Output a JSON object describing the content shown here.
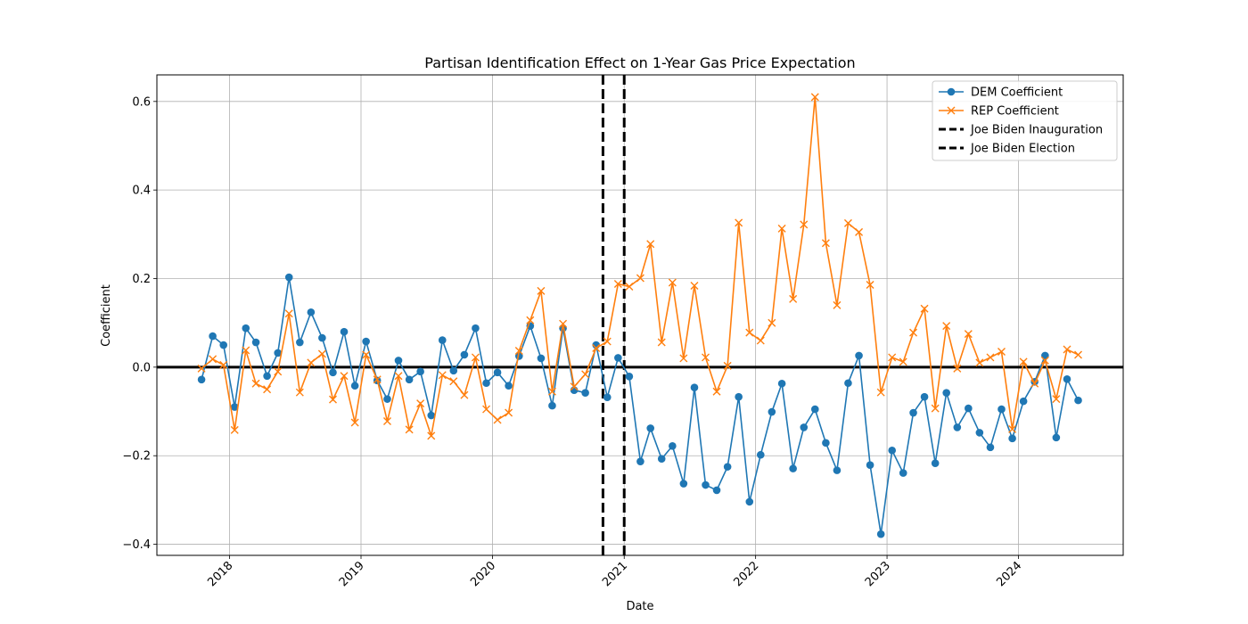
{
  "chart_data": {
    "type": "line",
    "title": "Partisan Identification Effect on 1-Year Gas Price Expectation",
    "xlabel": "Date",
    "ylabel": "Coefficient",
    "xlim": [
      "2017-06-13",
      "2024-10-18"
    ],
    "ylim": [
      -0.425,
      0.66
    ],
    "x_ticks": [
      "2018",
      "2019",
      "2020",
      "2021",
      "2022",
      "2023",
      "2024"
    ],
    "y_ticks": [
      "−0.4",
      "−0.2",
      "0.0",
      "0.2",
      "0.4",
      "0.6"
    ],
    "y_tick_values": [
      -0.4,
      -0.2,
      0.0,
      0.2,
      0.4,
      0.6
    ],
    "grid": true,
    "legend_position": "top-right",
    "dates": [
      "2017-10",
      "2017-11",
      "2017-12",
      "2018-01",
      "2018-02",
      "2018-03",
      "2018-04",
      "2018-05",
      "2018-06",
      "2018-07",
      "2018-08",
      "2018-09",
      "2018-10",
      "2018-11",
      "2018-12",
      "2019-01",
      "2019-02",
      "2019-03",
      "2019-04",
      "2019-05",
      "2019-06",
      "2019-07",
      "2019-08",
      "2019-09",
      "2019-10",
      "2019-11",
      "2019-12",
      "2020-01",
      "2020-02",
      "2020-03",
      "2020-04",
      "2020-05",
      "2020-06",
      "2020-07",
      "2020-08",
      "2020-09",
      "2020-10",
      "2020-11",
      "2020-12",
      "2021-01",
      "2021-02",
      "2021-03",
      "2021-04",
      "2021-05",
      "2021-06",
      "2021-07",
      "2021-08",
      "2021-09",
      "2021-10",
      "2021-11",
      "2021-12",
      "2022-01",
      "2022-02",
      "2022-03",
      "2022-04",
      "2022-05",
      "2022-06",
      "2022-07",
      "2022-08",
      "2022-09",
      "2022-10",
      "2022-11",
      "2022-12",
      "2023-01",
      "2023-02",
      "2023-03",
      "2023-04",
      "2023-05",
      "2023-06",
      "2023-07",
      "2023-08",
      "2023-09",
      "2023-10",
      "2023-11",
      "2023-12",
      "2024-01",
      "2024-02",
      "2024-03",
      "2024-04",
      "2024-05",
      "2024-06"
    ],
    "series": [
      {
        "name": "DEM Coefficient",
        "color": "#1f77b4",
        "marker": "circle",
        "values": [
          -0.028,
          0.07,
          0.05,
          -0.09,
          0.088,
          0.056,
          -0.02,
          0.032,
          0.203,
          0.056,
          0.124,
          0.066,
          -0.012,
          0.08,
          -0.042,
          0.058,
          -0.03,
          -0.072,
          0.015,
          -0.028,
          -0.01,
          -0.109,
          0.061,
          -0.008,
          0.028,
          0.088,
          -0.036,
          -0.012,
          -0.042,
          0.025,
          0.093,
          0.02,
          -0.087,
          0.088,
          -0.052,
          -0.058,
          0.05,
          -0.068,
          0.021,
          -0.021,
          -0.213,
          -0.138,
          -0.207,
          -0.178,
          -0.263,
          -0.046,
          -0.266,
          -0.278,
          -0.225,
          -0.067,
          -0.304,
          -0.198,
          -0.101,
          -0.037,
          -0.229,
          -0.136,
          -0.095,
          -0.171,
          -0.233,
          -0.036,
          0.026,
          -0.221,
          -0.377,
          -0.188,
          -0.239,
          -0.103,
          -0.067,
          -0.217,
          -0.058,
          -0.136,
          -0.093,
          -0.148,
          -0.181,
          -0.095,
          -0.161,
          -0.077,
          -0.033,
          0.026,
          -0.159,
          -0.027,
          -0.075
        ]
      },
      {
        "name": "REP Coefficient",
        "color": "#ff7f0e",
        "marker": "x",
        "values": [
          -0.003,
          0.018,
          0.005,
          -0.142,
          0.038,
          -0.037,
          -0.05,
          -0.01,
          0.121,
          -0.057,
          0.01,
          0.03,
          -0.073,
          -0.02,
          -0.125,
          0.028,
          -0.028,
          -0.122,
          -0.02,
          -0.141,
          -0.082,
          -0.155,
          -0.018,
          -0.032,
          -0.063,
          0.022,
          -0.095,
          -0.119,
          -0.103,
          0.037,
          0.106,
          0.172,
          -0.055,
          0.098,
          -0.044,
          -0.016,
          0.043,
          0.058,
          0.188,
          0.182,
          0.201,
          0.278,
          0.056,
          0.191,
          0.02,
          0.184,
          0.022,
          -0.055,
          0.003,
          0.326,
          0.078,
          0.06,
          0.1,
          0.313,
          0.154,
          0.322,
          0.61,
          0.28,
          0.14,
          0.325,
          0.305,
          0.186,
          -0.057,
          0.022,
          0.012,
          0.078,
          0.132,
          -0.093,
          0.093,
          -0.003,
          0.075,
          0.01,
          0.022,
          0.035,
          -0.14,
          0.012,
          -0.037,
          0.015,
          -0.072,
          0.04,
          0.028
        ]
      }
    ],
    "vertical_lines": [
      {
        "name": "Joe Biden Inauguration",
        "date": "2021-01-01",
        "color": "#000000"
      },
      {
        "name": "Joe Biden Election",
        "date": "2020-11-03",
        "color": "#000000"
      }
    ],
    "zero_line": 0.0
  }
}
